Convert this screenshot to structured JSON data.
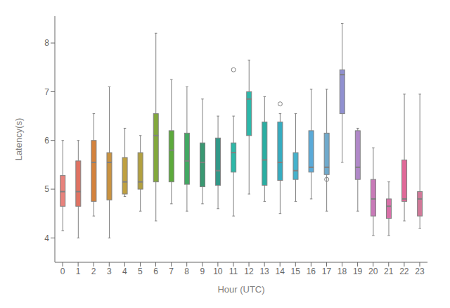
{
  "chart_data": {
    "type": "box",
    "xlabel": "Hour (UTC)",
    "ylabel": "Latency(s)",
    "categories": [
      "0",
      "1",
      "2",
      "3",
      "4",
      "5",
      "6",
      "7",
      "8",
      "9",
      "10",
      "11",
      "12",
      "13",
      "14",
      "15",
      "16",
      "17",
      "18",
      "19",
      "20",
      "21",
      "22",
      "23"
    ],
    "boxes": [
      {
        "whislo": 4.15,
        "q1": 4.65,
        "med": 4.95,
        "q3": 5.28,
        "whishi": 6.0,
        "fliers": []
      },
      {
        "whislo": 4.0,
        "q1": 4.65,
        "med": 4.95,
        "q3": 5.58,
        "whishi": 6.0,
        "fliers": []
      },
      {
        "whislo": 4.45,
        "q1": 4.75,
        "med": 5.55,
        "q3": 6.0,
        "whishi": 6.55,
        "fliers": []
      },
      {
        "whislo": 4.0,
        "q1": 4.78,
        "med": 5.55,
        "q3": 5.75,
        "whishi": 7.1,
        "fliers": []
      },
      {
        "whislo": 4.85,
        "q1": 4.9,
        "med": 5.15,
        "q3": 5.65,
        "whishi": 6.25,
        "fliers": []
      },
      {
        "whislo": 4.55,
        "q1": 5.0,
        "med": 5.15,
        "q3": 5.75,
        "whishi": 6.1,
        "fliers": []
      },
      {
        "whislo": 4.35,
        "q1": 5.15,
        "med": 6.1,
        "q3": 6.55,
        "whishi": 8.2,
        "fliers": []
      },
      {
        "whislo": 4.7,
        "q1": 5.15,
        "med": 5.8,
        "q3": 6.2,
        "whishi": 7.25,
        "fliers": []
      },
      {
        "whislo": 4.55,
        "q1": 5.1,
        "med": 5.58,
        "q3": 6.15,
        "whishi": 7.1,
        "fliers": []
      },
      {
        "whislo": 4.7,
        "q1": 5.05,
        "med": 5.55,
        "q3": 5.95,
        "whishi": 6.85,
        "fliers": []
      },
      {
        "whislo": 4.6,
        "q1": 5.08,
        "med": 5.38,
        "q3": 6.05,
        "whishi": 6.5,
        "fliers": []
      },
      {
        "whislo": 4.45,
        "q1": 5.35,
        "med": 5.75,
        "q3": 5.95,
        "whishi": 6.5,
        "fliers": [
          7.45
        ]
      },
      {
        "whislo": 4.9,
        "q1": 6.1,
        "med": 6.85,
        "q3": 7.0,
        "whishi": 7.65,
        "fliers": []
      },
      {
        "whislo": 4.75,
        "q1": 5.08,
        "med": 5.6,
        "q3": 6.38,
        "whishi": 6.9,
        "fliers": []
      },
      {
        "whislo": 4.5,
        "q1": 5.18,
        "med": 5.55,
        "q3": 6.38,
        "whishi": 6.55,
        "fliers": [
          6.75
        ]
      },
      {
        "whislo": 4.75,
        "q1": 5.2,
        "med": 5.38,
        "q3": 5.75,
        "whishi": 6.55,
        "fliers": []
      },
      {
        "whislo": 4.8,
        "q1": 5.35,
        "med": 5.45,
        "q3": 6.2,
        "whishi": 7.05,
        "fliers": []
      },
      {
        "whislo": 4.55,
        "q1": 5.3,
        "med": 5.45,
        "q3": 6.15,
        "whishi": 7.05,
        "fliers": [
          5.2
        ]
      },
      {
        "whislo": 5.55,
        "q1": 6.55,
        "med": 7.35,
        "q3": 7.45,
        "whishi": 8.4,
        "fliers": []
      },
      {
        "whislo": 4.55,
        "q1": 5.2,
        "med": 5.45,
        "q3": 6.2,
        "whishi": 6.25,
        "fliers": []
      },
      {
        "whislo": 4.05,
        "q1": 4.45,
        "med": 4.8,
        "q3": 5.2,
        "whishi": 5.85,
        "fliers": []
      },
      {
        "whislo": 4.05,
        "q1": 4.4,
        "med": 4.65,
        "q3": 4.8,
        "whishi": 5.15,
        "fliers": []
      },
      {
        "whislo": 4.35,
        "q1": 4.75,
        "med": 4.8,
        "q3": 5.6,
        "whishi": 6.95,
        "fliers": []
      },
      {
        "whislo": 4.2,
        "q1": 4.45,
        "med": 4.8,
        "q3": 4.95,
        "whishi": 6.95,
        "fliers": []
      }
    ],
    "colors": [
      "#E8827C",
      "#E07262",
      "#D4823C",
      "#C99240",
      "#BFA040",
      "#B2A040",
      "#82A83C",
      "#5CAA3C",
      "#42A862",
      "#3A9872",
      "#329888",
      "#2EB8A8",
      "#2CB8AA",
      "#2AAEA2",
      "#36ACC0",
      "#44B2CC",
      "#5AAAD8",
      "#70AACC",
      "#9090D0",
      "#B088C8",
      "#C87AB8",
      "#D870A8",
      "#E06898",
      "#D07898"
    ],
    "color": "#808080",
    "ylim": [
      3.5,
      8.55
    ],
    "yticks": [
      4,
      5,
      6,
      7,
      8
    ],
    "grid": false
  }
}
